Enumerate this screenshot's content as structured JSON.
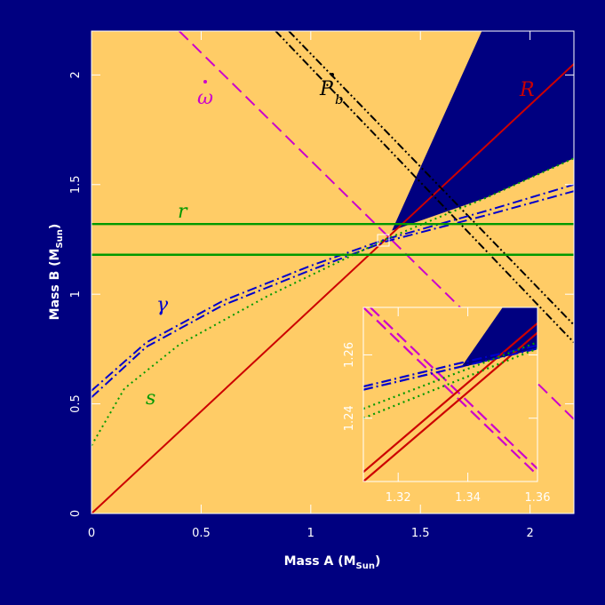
{
  "colors": {
    "background": "#000080",
    "allowed": "#ffcc66",
    "excluded": "#000080",
    "axis": "#ffffff",
    "R": "#cc0000",
    "omega": "#cc00cc",
    "Pb": "#000000",
    "gamma": "#0000cc",
    "r": "#009900",
    "s": "#009900"
  },
  "chart_data": [
    {
      "type": "line",
      "xlabel": "Mass A (M",
      "xlabel_sub": "Sun",
      "xlabel_close": ")",
      "ylabel": "Mass B (M",
      "ylabel_sub": "Sun",
      "ylabel_close": ")",
      "xlim": [
        0,
        2.2
      ],
      "ylim": [
        0,
        2.2
      ],
      "xticks": [
        "0",
        "0.5",
        "1",
        "1.5",
        "2"
      ],
      "xtick_values": [
        0,
        0.5,
        1,
        1.5,
        2
      ],
      "yticks": [
        "0",
        "0.5",
        "1",
        "1.5",
        "2"
      ],
      "ytick_values": [
        0,
        0.5,
        1,
        1.5,
        2
      ],
      "series": [
        {
          "name": "R",
          "style": "solid",
          "color": "R",
          "x": [
            0,
            2.2
          ],
          "y": [
            0,
            2.05
          ]
        },
        {
          "name": "ω̇",
          "style": "dashed",
          "color": "omega",
          "x": [
            0.4,
            2.2
          ],
          "y": [
            2.2,
            0.43
          ]
        },
        {
          "name": "Ṗb",
          "style": "dot-dot-dash",
          "color": "Pb",
          "x": [
            0.84,
            2.2
          ],
          "y": [
            2.2,
            0.78
          ]
        },
        {
          "name": "",
          "style": "dot-dot-dash",
          "color": "Pb",
          "x": [
            0.9,
            2.2
          ],
          "y": [
            2.2,
            0.86
          ]
        },
        {
          "name": "γ",
          "style": "dot-dash",
          "color": "gamma",
          "x": [
            0,
            0.25,
            0.6,
            1.0,
            1.34,
            1.8,
            2.2
          ],
          "y": [
            0.56,
            0.78,
            0.97,
            1.13,
            1.25,
            1.38,
            1.5
          ]
        },
        {
          "name": "",
          "style": "dot-dash",
          "color": "gamma",
          "x": [
            0,
            0.25,
            0.6,
            1.0,
            1.34,
            1.8,
            2.2
          ],
          "y": [
            0.53,
            0.76,
            0.95,
            1.11,
            1.24,
            1.36,
            1.47
          ]
        },
        {
          "name": "r",
          "style": "solid",
          "color": "r",
          "x": [
            0,
            2.2
          ],
          "y": [
            1.32,
            1.32
          ]
        },
        {
          "name": "",
          "style": "solid",
          "color": "r",
          "x": [
            0,
            2.2
          ],
          "y": [
            1.18,
            1.18
          ]
        },
        {
          "name": "s",
          "style": "dotted",
          "color": "s",
          "x": [
            0,
            0.15,
            0.4,
            0.8,
            1.34,
            1.8,
            2.2
          ],
          "y": [
            0.31,
            0.57,
            0.77,
            0.99,
            1.25,
            1.44,
            1.62
          ]
        }
      ],
      "excluded_region": {
        "x": [
          1.37,
          1.78,
          2.2,
          2.2,
          1.8,
          1.37
        ],
        "y": [
          1.29,
          2.2,
          2.2,
          1.62,
          1.44,
          1.29
        ]
      },
      "labels": {
        "R": "R",
        "omega": "ω",
        "Pb": "P",
        "Pb_sub": "b",
        "gamma": "γ",
        "r": "r",
        "s": "s"
      }
    },
    {
      "type": "line",
      "inset": true,
      "xlim": [
        1.31,
        1.36
      ],
      "ylim": [
        1.22,
        1.275
      ],
      "xticks": [
        "1.32",
        "1.34",
        "1.36"
      ],
      "xtick_values": [
        1.32,
        1.34,
        1.36
      ],
      "yticks": [
        "1.24",
        "1.26"
      ],
      "ytick_values": [
        1.24,
        1.26
      ],
      "series": [
        {
          "name": "",
          "style": "dashed",
          "color": "omega",
          "x": [
            1.31,
            1.36
          ],
          "y": [
            1.275,
            1.222
          ]
        },
        {
          "name": "",
          "style": "dashed",
          "color": "omega",
          "x": [
            1.312,
            1.36
          ],
          "y": [
            1.275,
            1.224
          ]
        },
        {
          "name": "",
          "style": "solid",
          "color": "R",
          "x": [
            1.31,
            1.36
          ],
          "y": [
            1.22,
            1.267
          ]
        },
        {
          "name": "",
          "style": "solid",
          "color": "R",
          "x": [
            1.31,
            1.36
          ],
          "y": [
            1.223,
            1.27
          ]
        },
        {
          "name": "",
          "style": "dot-dash",
          "color": "gamma",
          "x": [
            1.31,
            1.34,
            1.36
          ],
          "y": [
            1.25,
            1.258,
            1.263
          ]
        },
        {
          "name": "",
          "style": "dot-dash",
          "color": "gamma",
          "x": [
            1.31,
            1.36
          ],
          "y": [
            1.249,
            1.262
          ]
        },
        {
          "name": "",
          "style": "dotted",
          "color": "s",
          "x": [
            1.31,
            1.36
          ],
          "y": [
            1.24,
            1.262
          ]
        },
        {
          "name": "",
          "style": "dotted",
          "color": "s",
          "x": [
            1.31,
            1.36
          ],
          "y": [
            1.243,
            1.264
          ]
        }
      ],
      "excluded_region": {
        "x": [
          1.338,
          1.35,
          1.36,
          1.36,
          1.338
        ],
        "y": [
          1.256,
          1.275,
          1.275,
          1.262,
          1.256
        ]
      }
    }
  ]
}
